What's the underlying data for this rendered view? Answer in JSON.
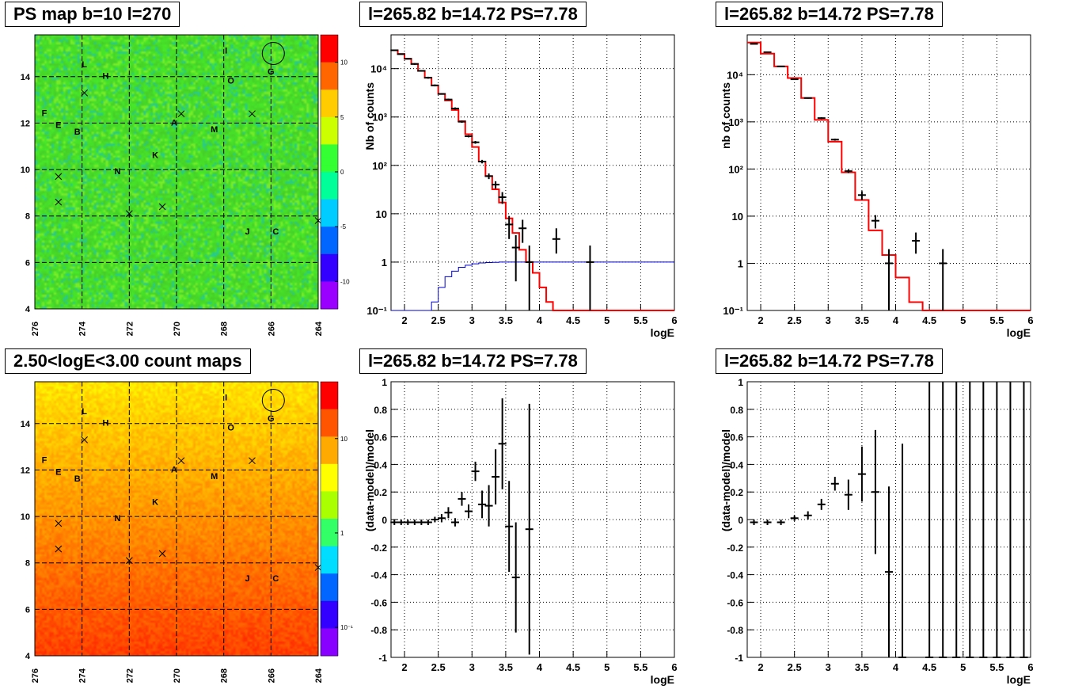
{
  "panels": {
    "map_top_title": "PS map b=10 l=270",
    "map_bottom_title": "2.50<logE<3.00 count maps",
    "spec_title": "l=265.82 b=14.72 PS=7.78"
  },
  "map_axes": {
    "x_ticks": [
      "276",
      "274",
      "272",
      "270",
      "268",
      "266",
      "264"
    ],
    "y_ticks": [
      "4",
      "6",
      "8",
      "10",
      "12",
      "14"
    ],
    "xlim": [
      276,
      264
    ],
    "ylim": [
      4,
      15.8
    ]
  },
  "sources": {
    "labels": [
      {
        "t": "I",
        "l": 267.9,
        "b": 15.0
      },
      {
        "t": "L",
        "l": 273.9,
        "b": 14.4
      },
      {
        "t": "H",
        "l": 273.0,
        "b": 13.9
      },
      {
        "t": "O",
        "l": 267.7,
        "b": 13.7
      },
      {
        "t": "G",
        "l": 266.0,
        "b": 14.1
      },
      {
        "t": "F",
        "l": 275.6,
        "b": 12.3
      },
      {
        "t": "E",
        "l": 275.0,
        "b": 11.8
      },
      {
        "t": "B",
        "l": 274.2,
        "b": 11.5
      },
      {
        "t": "A",
        "l": 270.1,
        "b": 11.9
      },
      {
        "t": "M",
        "l": 268.4,
        "b": 11.6
      },
      {
        "t": "K",
        "l": 270.9,
        "b": 10.5
      },
      {
        "t": "N",
        "l": 272.5,
        "b": 9.8
      },
      {
        "t": "J",
        "l": 267.0,
        "b": 7.2
      },
      {
        "t": "C",
        "l": 265.8,
        "b": 7.2
      }
    ],
    "crosses": [
      {
        "l": 273.9,
        "b": 13.3
      },
      {
        "l": 269.8,
        "b": 12.4
      },
      {
        "l": 266.8,
        "b": 12.4
      },
      {
        "l": 275.0,
        "b": 9.7
      },
      {
        "l": 275.0,
        "b": 8.6
      },
      {
        "l": 272.0,
        "b": 8.1
      },
      {
        "l": 270.6,
        "b": 8.4
      },
      {
        "l": 264.0,
        "b": 7.8
      }
    ],
    "circle": {
      "l": 265.9,
      "b": 15.0
    }
  },
  "colorbars": {
    "top_ticks": [
      "10",
      "5",
      "0",
      "-5",
      "-10"
    ],
    "top_range": [
      -12.5,
      12.5
    ],
    "bottom_ticks": [
      "10",
      "1",
      "10⁻¹"
    ],
    "bottom_log_values": [
      10,
      1,
      0.1
    ]
  },
  "chart_data": [
    {
      "type": "scatter",
      "title": "l=265.82 b=14.72 PS=7.78",
      "xlabel": "logE",
      "ylabel": "Nb of counts",
      "log_y": true,
      "xlim": [
        1.8,
        6.0
      ],
      "ylim": [
        0.1,
        50000
      ],
      "x_ticks": [
        "2",
        "2.5",
        "3",
        "3.5",
        "4",
        "4.5",
        "5",
        "5.5",
        "6"
      ],
      "y_ticks": [
        "10⁻¹",
        "1",
        "10",
        "10²",
        "10³",
        "10⁴"
      ],
      "data": {
        "x": [
          1.85,
          1.95,
          2.05,
          2.15,
          2.25,
          2.35,
          2.45,
          2.55,
          2.65,
          2.75,
          2.85,
          2.95,
          3.05,
          3.15,
          3.25,
          3.35,
          3.45,
          3.55,
          3.65,
          3.75,
          3.85,
          4.25,
          4.75
        ],
        "y": [
          24000,
          20000,
          16000,
          12500,
          9000,
          6500,
          4500,
          3000,
          2300,
          1500,
          800,
          400,
          300,
          120,
          60,
          40,
          22,
          6,
          2,
          5,
          1,
          3,
          1
        ],
        "ylo": [
          23500,
          19500,
          15500,
          12000,
          8700,
          6200,
          4300,
          2900,
          2200,
          1420,
          760,
          380,
          280,
          110,
          52,
          33,
          16,
          3,
          0.4,
          2.5,
          0.1,
          1.5,
          0.1
        ],
        "yhi": [
          24500,
          20500,
          16500,
          13000,
          9300,
          6800,
          4700,
          3100,
          2400,
          1580,
          840,
          420,
          320,
          130,
          68,
          47,
          28,
          9,
          3.6,
          7.5,
          2.2,
          5,
          2.2
        ]
      },
      "model": {
        "edges": [
          1.8,
          1.9,
          2.0,
          2.1,
          2.2,
          2.3,
          2.4,
          2.5,
          2.6,
          2.7,
          2.8,
          2.9,
          3.0,
          3.1,
          3.2,
          3.3,
          3.4,
          3.5,
          3.6,
          3.7,
          3.8,
          3.9,
          4.0,
          4.1,
          4.2,
          4.3,
          6.0
        ],
        "values": [
          24000,
          20000,
          16000,
          12500,
          9000,
          6500,
          4500,
          3000,
          2200,
          1400,
          820,
          440,
          240,
          120,
          60,
          32,
          17,
          8,
          4,
          1.8,
          1.0,
          0.6,
          0.3,
          0.15,
          0.1,
          0.1
        ]
      },
      "curve": {
        "edges": [
          1.8,
          2.4,
          2.5,
          2.6,
          2.7,
          2.8,
          2.9,
          3.0,
          3.1,
          3.2,
          3.3,
          3.4,
          3.6,
          6.0
        ],
        "values": [
          0.1,
          0.15,
          0.3,
          0.5,
          0.65,
          0.78,
          0.86,
          0.92,
          0.96,
          0.98,
          0.99,
          1.0,
          1.0
        ]
      },
      "colors": {
        "data": "#000000",
        "model": "#ff0000",
        "curve": "#0000cc"
      }
    },
    {
      "type": "scatter",
      "title": "l=265.82 b=14.72 PS=7.78",
      "xlabel": "logE",
      "ylabel": "nb of counts",
      "log_y": true,
      "xlim": [
        1.8,
        6.0
      ],
      "ylim": [
        0.1,
        70000
      ],
      "x_ticks": [
        "2",
        "2.5",
        "3",
        "3.5",
        "4",
        "4.5",
        "5",
        "5.5",
        "6"
      ],
      "y_ticks": [
        "10⁻¹",
        "1",
        "10",
        "10²",
        "10³",
        "10⁴"
      ],
      "data": {
        "x": [
          1.9,
          2.1,
          2.3,
          2.5,
          2.7,
          2.9,
          3.1,
          3.3,
          3.5,
          3.7,
          3.9,
          4.3,
          4.7
        ],
        "y": [
          45000,
          30000,
          15000,
          8000,
          3200,
          1200,
          420,
          90,
          28,
          8,
          1,
          3,
          1
        ],
        "ylo": [
          44000,
          29500,
          14700,
          7800,
          3100,
          1150,
          400,
          82,
          22,
          5.5,
          0.1,
          1.6,
          0.1
        ],
        "yhi": [
          46000,
          30500,
          15300,
          8200,
          3300,
          1250,
          440,
          98,
          34,
          10.5,
          2,
          4.5,
          2
        ]
      },
      "model": {
        "edges": [
          1.8,
          2.0,
          2.2,
          2.4,
          2.6,
          2.8,
          3.0,
          3.2,
          3.4,
          3.6,
          3.8,
          4.0,
          4.2,
          4.4,
          6.0
        ],
        "values": [
          48000,
          28000,
          15000,
          8500,
          3200,
          1100,
          380,
          85,
          22,
          5,
          1.5,
          0.5,
          0.15,
          0.1
        ]
      },
      "colors": {
        "data": "#000000",
        "model": "#ff0000"
      }
    },
    {
      "type": "scatter",
      "title": "l=265.82 b=14.72 PS=7.78",
      "xlabel": "logE",
      "ylabel": "(data-model)/model",
      "log_y": false,
      "xlim": [
        1.8,
        6.0
      ],
      "ylim": [
        -1,
        1
      ],
      "x_ticks": [
        "2",
        "2.5",
        "3",
        "3.5",
        "4",
        "4.5",
        "5",
        "5.5",
        "6"
      ],
      "y_ticks": [
        "-1",
        "-0.8",
        "-0.6",
        "-0.4",
        "-0.2",
        "0",
        "0.2",
        "0.4",
        "0.6",
        "0.8",
        "1"
      ],
      "data": {
        "x": [
          1.85,
          1.95,
          2.05,
          2.15,
          2.25,
          2.35,
          2.45,
          2.55,
          2.65,
          2.75,
          2.85,
          2.95,
          3.05,
          3.15,
          3.25,
          3.35,
          3.45,
          3.55,
          3.65,
          3.85
        ],
        "y": [
          -0.02,
          -0.02,
          -0.02,
          -0.02,
          -0.02,
          -0.02,
          0.0,
          0.01,
          0.05,
          -0.02,
          0.15,
          0.06,
          0.35,
          0.11,
          0.1,
          0.31,
          0.55,
          -0.05,
          -0.42,
          -0.07
        ],
        "err": [
          0.02,
          0.02,
          0.02,
          0.02,
          0.02,
          0.02,
          0.02,
          0.03,
          0.04,
          0.03,
          0.05,
          0.05,
          0.07,
          0.1,
          0.15,
          0.2,
          0.33,
          0.33,
          0.4,
          0.91
        ]
      },
      "colors": {
        "data": "#000000"
      }
    },
    {
      "type": "scatter",
      "title": "l=265.82 b=14.72 PS=7.78",
      "xlabel": "logE",
      "ylabel": "(data-model)/model",
      "log_y": false,
      "xlim": [
        1.8,
        6.0
      ],
      "ylim": [
        -1,
        1
      ],
      "x_ticks": [
        "2",
        "2.5",
        "3",
        "3.5",
        "4",
        "4.5",
        "5",
        "5.5",
        "6"
      ],
      "y_ticks": [
        "-1",
        "-0.8",
        "-0.6",
        "-0.4",
        "-0.2",
        "0",
        "0.2",
        "0.4",
        "0.6",
        "0.8",
        "1"
      ],
      "data": {
        "x": [
          1.9,
          2.1,
          2.3,
          2.5,
          2.7,
          2.9,
          3.1,
          3.3,
          3.5,
          3.7,
          3.9,
          4.1,
          4.5,
          4.7,
          4.9,
          5.1,
          5.3,
          5.5,
          5.7,
          5.9
        ],
        "y": [
          -0.02,
          -0.02,
          -0.02,
          0.01,
          0.03,
          0.11,
          0.26,
          0.18,
          0.33,
          0.2,
          -0.38,
          -1.0,
          -1.0,
          -1.0,
          -1.0,
          -1.0,
          -1.0,
          -1.0,
          -1.0,
          -1.0
        ],
        "err": [
          0.02,
          0.02,
          0.02,
          0.02,
          0.03,
          0.04,
          0.05,
          0.11,
          0.2,
          0.45,
          0.62,
          1.55,
          2.0,
          2.0,
          2.0,
          2.0,
          2.0,
          2.0,
          2.0,
          2.0
        ]
      },
      "colors": {
        "data": "#000000"
      }
    }
  ]
}
